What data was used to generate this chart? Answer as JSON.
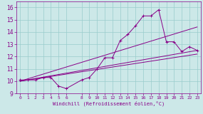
{
  "xlabel": "Windchill (Refroidissement éolien,°C)",
  "xlim": [
    -0.5,
    23.5
  ],
  "ylim": [
    9.0,
    16.5
  ],
  "yticks": [
    9,
    10,
    11,
    12,
    13,
    14,
    15,
    16
  ],
  "xticks": [
    0,
    1,
    2,
    3,
    4,
    5,
    6,
    8,
    9,
    10,
    11,
    12,
    13,
    14,
    15,
    16,
    17,
    18,
    19,
    20,
    21,
    22,
    23
  ],
  "bg_color": "#cce8e8",
  "line_color": "#880088",
  "grid_color": "#99cccc",
  "lines": [
    {
      "x": [
        0,
        1,
        2,
        3,
        4,
        5,
        6,
        8,
        9,
        10,
        11,
        12,
        13,
        14,
        15,
        16,
        17,
        18,
        19,
        20,
        21,
        22,
        23
      ],
      "y": [
        10.1,
        10.1,
        10.1,
        10.3,
        10.3,
        9.6,
        9.4,
        10.1,
        10.3,
        11.0,
        11.9,
        11.9,
        13.3,
        13.8,
        14.5,
        15.3,
        15.3,
        15.8,
        13.2,
        13.2,
        12.4,
        12.8,
        12.5
      ],
      "marker": "+"
    },
    {
      "x": [
        0,
        23
      ],
      "y": [
        10.0,
        12.2
      ],
      "marker": null
    },
    {
      "x": [
        0,
        23
      ],
      "y": [
        10.0,
        12.5
      ],
      "marker": null
    },
    {
      "x": [
        0,
        23
      ],
      "y": [
        10.0,
        14.4
      ],
      "marker": null
    }
  ]
}
